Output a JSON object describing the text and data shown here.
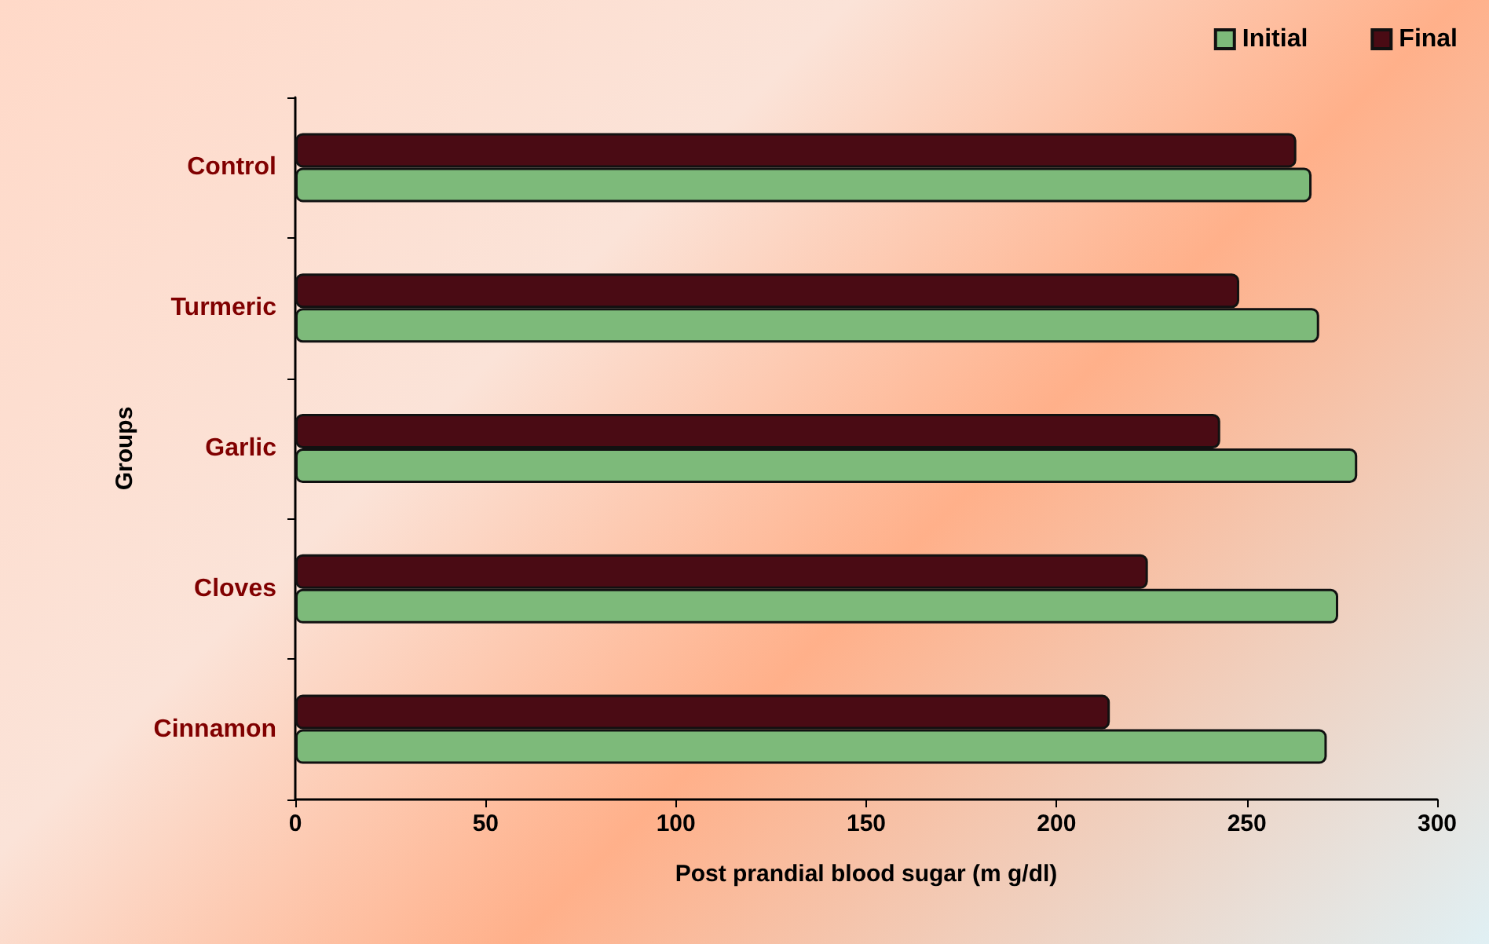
{
  "chart_data": {
    "type": "bar",
    "orientation": "horizontal",
    "xlabel": "Post prandial blood sugar (m g/dl)",
    "ylabel": "Groups",
    "categories": [
      "Control",
      "Turmeric",
      "Garlic",
      "Cloves",
      "Cinnamon"
    ],
    "series": [
      {
        "name": "Initial",
        "color": "#7dba7a",
        "values": [
          267,
          269,
          279,
          274,
          271
        ]
      },
      {
        "name": "Final",
        "color": "#4a0b14",
        "values": [
          263,
          248,
          243,
          224,
          214
        ]
      }
    ],
    "xlim": [
      0,
      300
    ],
    "xticks": [
      0,
      50,
      100,
      150,
      200,
      250,
      300
    ],
    "grid": false,
    "legend": "top right"
  }
}
